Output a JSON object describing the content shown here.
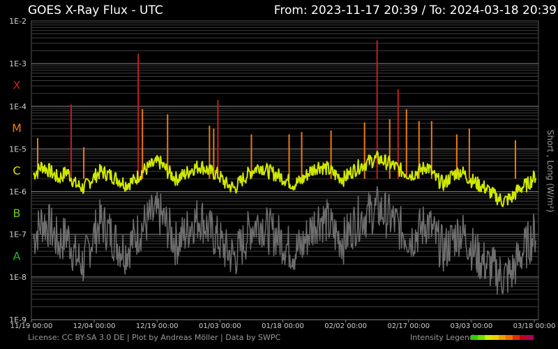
{
  "header": {
    "title": "GOES X-Ray Flux - UTC",
    "range": "From: 2023-11-17 20:39  /  To: 2024-03-18 20:39"
  },
  "footer": {
    "credits": "License: CC BY-SA 3.0 DE | Plot by Andreas Möller | Data by SWPC",
    "legend_label": "Intensity Legend"
  },
  "legend_colors": [
    "#2fd000",
    "#6ee000",
    "#c8f000",
    "#f0d000",
    "#f0a000",
    "#f07000",
    "#e03000",
    "#c00020",
    "#b00060"
  ],
  "chart_data": {
    "type": "line",
    "title": "GOES X-Ray Flux - UTC",
    "ylabel": "Short , Long (W/m²)",
    "yscale": "log",
    "ylim": [
      1e-09,
      0.01
    ],
    "xlim": [
      "2023-11-19",
      "2024-03-19"
    ],
    "grid": true,
    "y_ticks": [
      "1E-2",
      "1E-3",
      "1E-4",
      "1E-5",
      "1E-6",
      "1E-7",
      "1E-8",
      "1E-9"
    ],
    "x_ticks": [
      "11/19 00:00",
      "12/04 00:00",
      "12/19 00:00",
      "01/03 00:00",
      "01/18 00:00",
      "02/02 00:00",
      "02/17 00:00",
      "03/03 00:00",
      "03/18 00:00"
    ],
    "class_labels": [
      {
        "label": "X",
        "color": "#c81e1e"
      },
      {
        "label": "M",
        "color": "#f07a10"
      },
      {
        "label": "C",
        "color": "#e6e600"
      },
      {
        "label": "B",
        "color": "#66cc00"
      },
      {
        "label": "A",
        "color": "#22bb22"
      }
    ],
    "series": [
      {
        "name": "Long",
        "color": "#cfe800",
        "x": [
          "2023-11-19",
          "2023-11-21",
          "2023-11-23",
          "2023-11-25",
          "2023-11-27",
          "2023-11-29",
          "2023-12-01",
          "2023-12-03",
          "2023-12-05",
          "2023-12-07",
          "2023-12-09",
          "2023-12-11",
          "2023-12-13",
          "2023-12-15",
          "2023-12-17",
          "2023-12-19",
          "2023-12-21",
          "2023-12-23",
          "2023-12-25",
          "2023-12-27",
          "2023-12-29",
          "2023-12-31",
          "2024-01-02",
          "2024-01-04",
          "2024-01-06",
          "2024-01-08",
          "2024-01-10",
          "2024-01-12",
          "2024-01-14",
          "2024-01-16",
          "2024-01-18",
          "2024-01-20",
          "2024-01-22",
          "2024-01-24",
          "2024-01-26",
          "2024-01-28",
          "2024-01-30",
          "2024-02-01",
          "2024-02-03",
          "2024-02-05",
          "2024-02-07",
          "2024-02-09",
          "2024-02-11",
          "2024-02-13",
          "2024-02-15",
          "2024-02-17",
          "2024-02-19",
          "2024-02-21",
          "2024-02-23",
          "2024-02-25",
          "2024-02-27",
          "2024-02-29",
          "2024-03-02",
          "2024-03-04",
          "2024-03-06",
          "2024-03-08",
          "2024-03-10",
          "2024-03-12",
          "2024-03-14",
          "2024-03-16",
          "2024-03-18"
        ],
        "y": [
          2.5e-06,
          4e-06,
          3e-06,
          2e-06,
          3e-06,
          1.5e-06,
          1.2e-06,
          2e-06,
          3e-06,
          2.5e-06,
          2e-06,
          1.5e-06,
          1.8e-06,
          3e-06,
          4e-06,
          5e-06,
          3e-06,
          2e-06,
          2.5e-06,
          3.5e-06,
          4e-06,
          3e-06,
          2.5e-06,
          1.5e-06,
          1.2e-06,
          2e-06,
          3e-06,
          4e-06,
          3e-06,
          2.5e-06,
          2e-06,
          1.5e-06,
          1.8e-06,
          3e-06,
          4e-06,
          3.5e-06,
          2.5e-06,
          2e-06,
          3e-06,
          4e-06,
          5e-06,
          6e-06,
          5e-06,
          4e-06,
          3e-06,
          2.5e-06,
          3e-06,
          4e-06,
          2e-06,
          1.5e-06,
          2.5e-06,
          3e-06,
          2e-06,
          1.5e-06,
          1.2e-06,
          8e-07,
          6e-07,
          7e-07,
          1.2e-06,
          1.5e-06,
          2.5e-06
        ]
      },
      {
        "name": "Short",
        "color": "#6e6e6e",
        "x": [
          "2023-11-19",
          "2023-11-21",
          "2023-11-23",
          "2023-11-25",
          "2023-11-27",
          "2023-11-29",
          "2023-12-01",
          "2023-12-03",
          "2023-12-05",
          "2023-12-07",
          "2023-12-09",
          "2023-12-11",
          "2023-12-13",
          "2023-12-15",
          "2023-12-17",
          "2023-12-19",
          "2023-12-21",
          "2023-12-23",
          "2023-12-25",
          "2023-12-27",
          "2023-12-29",
          "2023-12-31",
          "2024-01-02",
          "2024-01-04",
          "2024-01-06",
          "2024-01-08",
          "2024-01-10",
          "2024-01-12",
          "2024-01-14",
          "2024-01-16",
          "2024-01-18",
          "2024-01-20",
          "2024-01-22",
          "2024-01-24",
          "2024-01-26",
          "2024-01-28",
          "2024-01-30",
          "2024-02-01",
          "2024-02-03",
          "2024-02-05",
          "2024-02-07",
          "2024-02-09",
          "2024-02-11",
          "2024-02-13",
          "2024-02-15",
          "2024-02-17",
          "2024-02-19",
          "2024-02-21",
          "2024-02-23",
          "2024-02-25",
          "2024-02-27",
          "2024-02-29",
          "2024-03-02",
          "2024-03-04",
          "2024-03-06",
          "2024-03-08",
          "2024-03-10",
          "2024-03-12",
          "2024-03-14",
          "2024-03-16",
          "2024-03-18"
        ],
        "y": [
          8e-08,
          2e-07,
          1.5e-07,
          6e-08,
          1e-07,
          3e-08,
          2e-08,
          8e-08,
          2e-07,
          1.2e-07,
          6e-08,
          4e-08,
          8e-08,
          1.5e-07,
          2.5e-07,
          3e-07,
          1.5e-07,
          6e-08,
          1e-07,
          2e-07,
          2.5e-07,
          1.2e-07,
          8e-08,
          4e-08,
          3e-08,
          6e-08,
          1.5e-07,
          2e-07,
          1.2e-07,
          1e-07,
          6e-08,
          4e-08,
          5e-08,
          1.2e-07,
          2.5e-07,
          2e-07,
          1e-07,
          7e-08,
          1.5e-07,
          2.5e-07,
          3e-07,
          4e-07,
          3e-07,
          2e-07,
          1.2e-07,
          8e-08,
          1.2e-07,
          2e-07,
          8e-08,
          4e-08,
          8e-08,
          1.2e-07,
          6e-08,
          3e-08,
          2e-08,
          1.5e-08,
          1e-08,
          1.2e-08,
          3e-08,
          6e-08,
          1.2e-07
        ]
      }
    ],
    "flares": [
      {
        "x": "2023-11-20",
        "y": 1.8e-05
      },
      {
        "x": "2023-11-28",
        "y": 0.00011
      },
      {
        "x": "2023-12-01",
        "y": 1.1e-05
      },
      {
        "x": "2023-12-14",
        "y": 0.0017
      },
      {
        "x": "2023-12-15",
        "y": 8.6e-05
      },
      {
        "x": "2023-12-21",
        "y": 6.5e-05
      },
      {
        "x": "2023-12-31",
        "y": 3.5e-05
      },
      {
        "x": "2024-01-01",
        "y": 3e-05
      },
      {
        "x": "2024-01-02",
        "y": 0.00014
      },
      {
        "x": "2024-01-10",
        "y": 2.2e-05
      },
      {
        "x": "2024-01-19",
        "y": 2.2e-05
      },
      {
        "x": "2024-01-22",
        "y": 2.5e-05
      },
      {
        "x": "2024-01-29",
        "y": 2.7e-05
      },
      {
        "x": "2024-02-06",
        "y": 4.2e-05
      },
      {
        "x": "2024-02-09",
        "y": 0.0035
      },
      {
        "x": "2024-02-12",
        "y": 5e-05
      },
      {
        "x": "2024-02-14",
        "y": 0.00025
      },
      {
        "x": "2024-02-16",
        "y": 8.5e-05
      },
      {
        "x": "2024-02-19",
        "y": 4.5e-05
      },
      {
        "x": "2024-02-22",
        "y": 4.5e-05
      },
      {
        "x": "2024-02-28",
        "y": 2.2e-05
      },
      {
        "x": "2024-03-02",
        "y": 3e-05
      },
      {
        "x": "2024-03-13",
        "y": 1.6e-05
      }
    ]
  }
}
